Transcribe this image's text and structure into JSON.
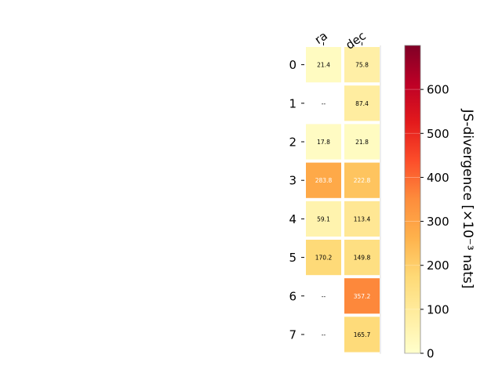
{
  "chart_data": {
    "type": "heatmap",
    "columns": [
      "ra",
      "dec"
    ],
    "rows": [
      "0",
      "1",
      "2",
      "3",
      "4",
      "5",
      "6",
      "7"
    ],
    "values": [
      [
        21.4,
        75.8
      ],
      [
        null,
        87.4
      ],
      [
        17.8,
        21.8
      ],
      [
        283.8,
        222.8
      ],
      [
        59.1,
        113.4
      ],
      [
        170.2,
        149.8
      ],
      [
        null,
        357.2
      ],
      [
        null,
        165.7
      ]
    ],
    "missing_label": "--",
    "colorbar": {
      "label": "JS-divergence [×10⁻³ nats]",
      "range": [
        0,
        700
      ],
      "ticks": [
        0,
        100,
        200,
        300,
        400,
        500,
        600
      ],
      "colormap": "YlOrRd"
    },
    "grid": false,
    "legend_position": "right"
  }
}
